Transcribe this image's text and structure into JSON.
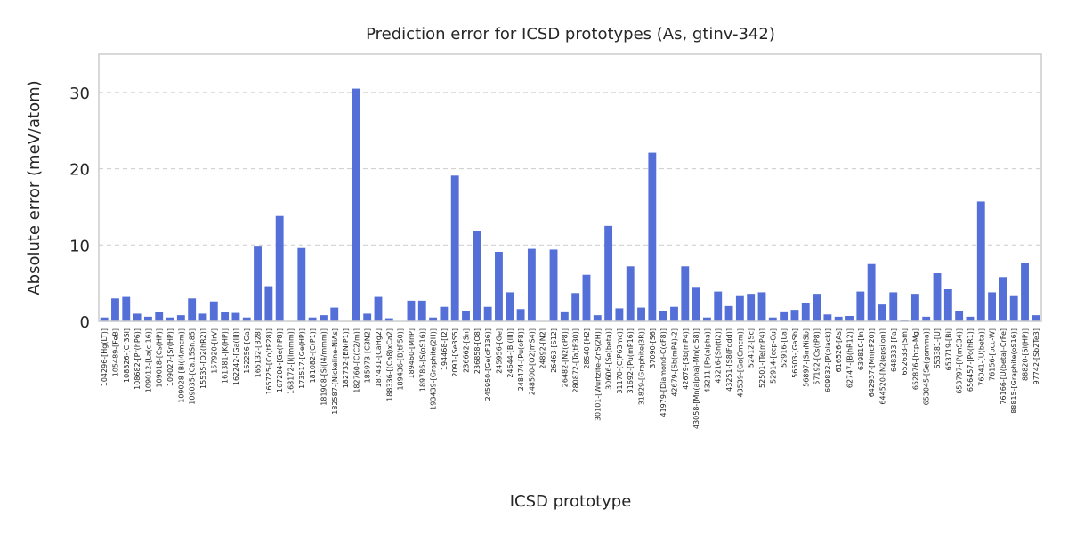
{
  "chart_data": {
    "type": "bar",
    "title": "Prediction error for ICSD prototypes (As, gtinv-342)",
    "xlabel": "ICSD prototype",
    "ylabel": "Absolute error (meV/atom)",
    "ylim": [
      0,
      35
    ],
    "yticks": [
      0,
      10,
      20,
      30
    ],
    "grid": true,
    "bar_color": "#5470d8",
    "categories": [
      "104296-[Hg(LT)]",
      "105489-[FeB]",
      "108326-[Cr3Si]",
      "108682-[Pr(hP6)]",
      "109012-[La(cI16)]",
      "109018-[Cs(HP)]",
      "109027-[Sr(HP)]",
      "109028-[Bi(I4/mcm)]",
      "109035-[Ca.15Sn.85]",
      "15535-[O2(hR2)]",
      "157920-[IrV]",
      "161381-[K(HP)]",
      "162242-[Ga(III)]",
      "162256-[Ga]",
      "165132-[B28]",
      "165725-[Co(tP28)]",
      "167204-[Ge(hP8)]",
      "168172-[I(Immm)]",
      "173517-[Ge(HP)]",
      "181082-[C(P1)]",
      "181908-[Si(I4/mmm)]",
      "182587-[Nickeline-NiAs]",
      "182732-[BN(P1)]",
      "182760-[C(C2/m)]",
      "185973-[C3N2]",
      "187431-[CaHg2]",
      "188336-[(Ca8)xCa2]",
      "189436-[B(tP50)]",
      "189460-[MnP]",
      "189786-[S(oS16)]",
      "193439-[Graphite(2H)]",
      "194468-[I2]",
      "2091-[Se3S5]",
      "236662-[Sn]",
      "236858-[O8]",
      "245950-[Ge(cF136)]",
      "245956-[Ge]",
      "24644-[Bi(III)]",
      "248474-[Pu(oF8)]",
      "248500-[O2(mS4)]",
      "24892-[N2]",
      "26463-[S12]",
      "26482-[N2(cP8)]",
      "280872-[Ta(tP30)]",
      "28540-[H2]",
      "30101-[Wurtzite-ZnS(2H)]",
      "30606-[Se(beta)]",
      "31170-[C(P63mc)]",
      "31692-[Pu(mP16)]",
      "31829-[Graphite(3R)]",
      "37090-[S6]",
      "41979-[Diamond-C(cF8)]",
      "42679-[Sb(mP4)-2]",
      "42679-[Sb(mP4)]",
      "43058-[Mn(alpha)-Mn(cI58)]",
      "43211-[Po(alpha)]",
      "43216-[Sn(tI2)]",
      "43251-[S8(Fddd)]",
      "43539-[Ga(Cmcm)]",
      "52412-[Sc]",
      "52501-[Te(mP4)]",
      "52914-[ccp-Cu]",
      "52916-[La]",
      "56503-[GaSb]",
      "56897-[SmNiSb]",
      "57192-[Cs(tP8)]",
      "609832-[P(black)]",
      "616526-[As]",
      "62747-[B(hR12)]",
      "639810-[In]",
      "642937-[Mn(cP20)]",
      "644520-[N2(epsilon)]",
      "648333-[Pa]",
      "652633-[Sm]",
      "652876-[hcp-Mg]",
      "653045-[Se(gamma)]",
      "653381-[U]",
      "653719-[Bi]",
      "653797-[P(mS34)]",
      "656457-[Po(hR1)]",
      "76041-[U(beta)]",
      "76156-[bcc-W]",
      "76166-[U(beta)-CrFe]",
      "88815-[Graphite(oS16)]",
      "88820-[Si(HP)]",
      "97742-[Sb2Te3]"
    ],
    "values": [
      0.5,
      3.0,
      3.2,
      1.0,
      0.6,
      1.2,
      0.5,
      0.8,
      3.0,
      1.0,
      2.6,
      1.2,
      1.1,
      0.5,
      9.9,
      4.6,
      13.8,
      0.0,
      9.6,
      0.5,
      0.8,
      1.8,
      0.0,
      30.5,
      1.0,
      3.2,
      0.4,
      0.0,
      2.7,
      2.7,
      0.5,
      1.9,
      19.1,
      1.4,
      11.8,
      1.9,
      9.1,
      3.8,
      1.6,
      9.5,
      0.0,
      9.4,
      1.3,
      3.7,
      6.1,
      0.8,
      12.5,
      1.7,
      7.2,
      1.8,
      22.1,
      1.4,
      1.9,
      7.2,
      4.4,
      0.5,
      3.9,
      2.0,
      3.3,
      3.6,
      3.8,
      0.5,
      1.3,
      1.5,
      2.4,
      3.6,
      0.9,
      0.6,
      0.7,
      3.9,
      7.5,
      2.2,
      3.8,
      0.2,
      3.6,
      0.6,
      6.3,
      4.2,
      1.4,
      0.6,
      15.7,
      3.8,
      5.8,
      3.3,
      7.6,
      0.8
    ]
  }
}
